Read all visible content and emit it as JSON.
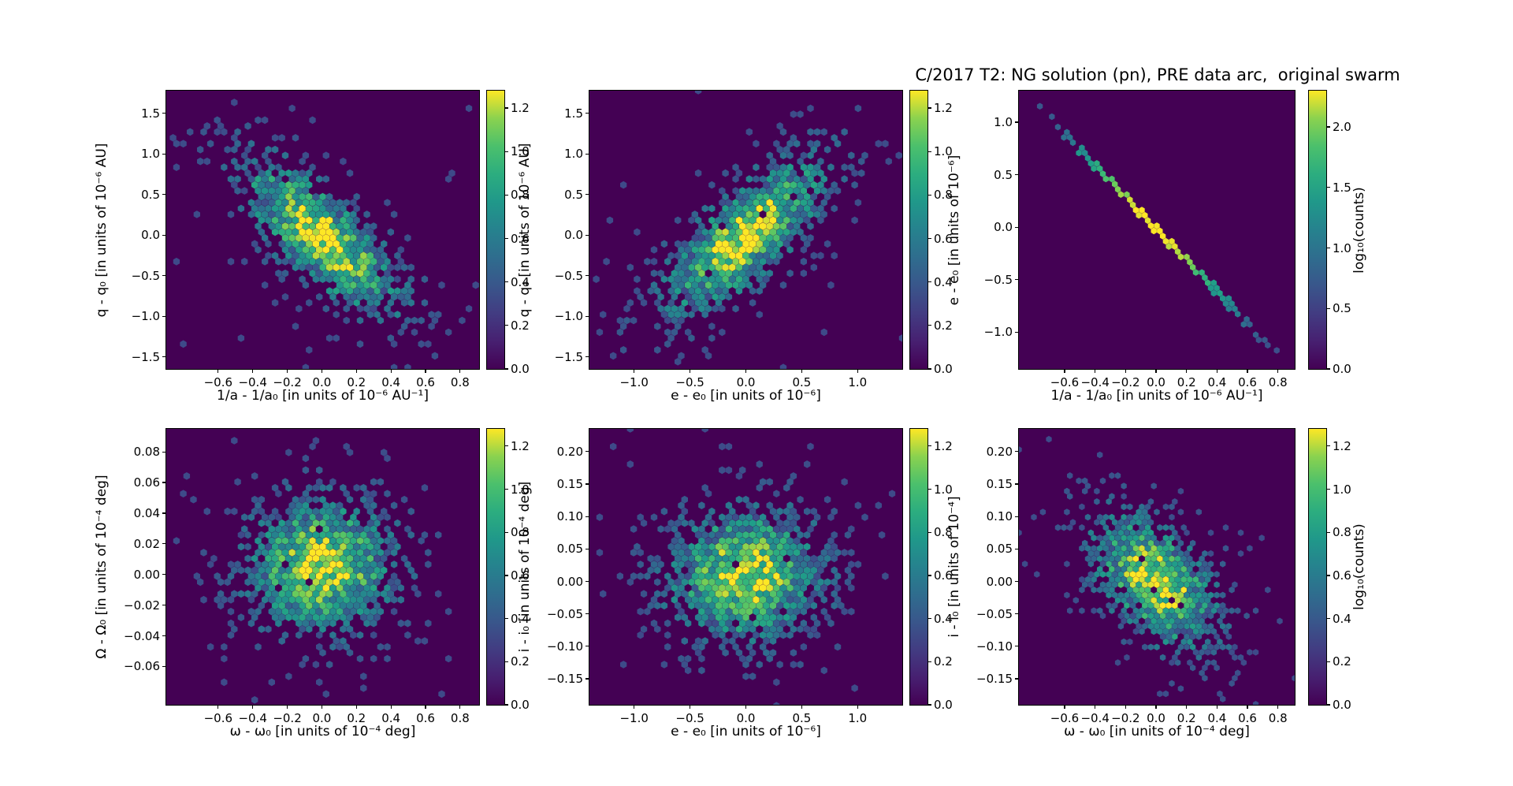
{
  "figure": {
    "title": "C/2017 T2: NG solution (pn), PRE data arc,  original swarm",
    "background": "#ffffff",
    "colormap": "viridis",
    "plot_background": "#440154"
  },
  "chart_data": [
    {
      "type": "hexbin",
      "position": "top-left",
      "xlabel": "1/a - 1/a₀ [in units of 10⁻⁶ AU⁻¹]",
      "ylabel": "q - q₀ [in units of 10⁻⁶ AU]",
      "xlim": [
        -0.9,
        0.91
      ],
      "ylim": [
        -1.65,
        1.78
      ],
      "xticks": [
        "−0.6",
        "−0.4",
        "−0.2",
        "0.0",
        "0.2",
        "0.4",
        "0.6",
        "0.8"
      ],
      "yticks": [
        "1.5",
        "1.0",
        "0.5",
        "0.0",
        "−0.5",
        "−1.0",
        "−1.5"
      ],
      "grid": false,
      "distribution": {
        "kind": "gaussian-blob",
        "center": [
          0.0,
          -0.03
        ],
        "sigma": [
          0.3,
          0.62
        ],
        "rho": -0.75,
        "peak_log10_counts": 1.25
      },
      "colorbar": {
        "vmin": 0.0,
        "vmax": 1.28,
        "ticks": [
          "0.0",
          "0.2",
          "0.4",
          "0.6",
          "0.8",
          "1.0",
          "1.2"
        ],
        "label": ""
      }
    },
    {
      "type": "hexbin",
      "position": "top-middle",
      "xlabel": "e - e₀ [in units of 10⁻⁶]",
      "ylabel": "q - q₀ [in units of 10⁻⁶ AU]",
      "xlim": [
        -1.4,
        1.4
      ],
      "ylim": [
        -1.65,
        1.78
      ],
      "xticks": [
        "−1.0",
        "−0.5",
        "0.0",
        "0.5",
        "1.0"
      ],
      "yticks": [
        "1.5",
        "1.0",
        "0.5",
        "0.0",
        "−0.5",
        "−1.0",
        "−1.5"
      ],
      "grid": false,
      "distribution": {
        "kind": "gaussian-blob",
        "center": [
          0.0,
          0.0
        ],
        "sigma": [
          0.47,
          0.62
        ],
        "rho": 0.75,
        "peak_log10_counts": 1.25
      },
      "colorbar": {
        "vmin": 0.0,
        "vmax": 1.28,
        "ticks": [
          "0.0",
          "0.2",
          "0.4",
          "0.6",
          "0.8",
          "1.0",
          "1.2"
        ],
        "label": ""
      }
    },
    {
      "type": "hexbin",
      "position": "top-right",
      "xlabel": "1/a - 1/a₀ [in units of 10⁻⁶ AU⁻¹]",
      "ylabel": "e - e₀ [in units of 10⁻⁶]",
      "xlim": [
        -0.9,
        0.91
      ],
      "ylim": [
        -1.35,
        1.3
      ],
      "xticks": [
        "−0.6",
        "−0.4",
        "−0.2",
        "0.0",
        "0.2",
        "0.4",
        "0.6",
        "0.8"
      ],
      "yticks": [
        "1.0",
        "0.5",
        "0.0",
        "−0.5",
        "−1.0"
      ],
      "grid": false,
      "distribution": {
        "kind": "degenerate-line",
        "from": [
          -0.85,
          1.27
        ],
        "to": [
          0.79,
          -1.21
        ],
        "peak_log10_counts": 2.3
      },
      "colorbar": {
        "vmin": 0.0,
        "vmax": 2.3,
        "ticks": [
          "0.0",
          "0.5",
          "1.0",
          "1.5",
          "2.0"
        ],
        "label": "log₁₀(counts)"
      }
    },
    {
      "type": "hexbin",
      "position": "bottom-left",
      "xlabel": "ω - ω₀ [in units of 10⁻⁴ deg]",
      "ylabel": "Ω - Ω₀ [in units of 10⁻⁴ deg]",
      "xlim": [
        -0.9,
        0.91
      ],
      "ylim": [
        -0.085,
        0.095
      ],
      "xticks": [
        "−0.6",
        "−0.4",
        "−0.2",
        "0.0",
        "0.2",
        "0.4",
        "0.6",
        "0.8"
      ],
      "yticks": [
        "0.08",
        "0.06",
        "0.04",
        "0.02",
        "0.00",
        "−0.02",
        "−0.04",
        "−0.06"
      ],
      "grid": false,
      "distribution": {
        "kind": "gaussian-blob",
        "center": [
          0.0,
          0.006
        ],
        "sigma": [
          0.28,
          0.028
        ],
        "rho": 0.02,
        "peak_log10_counts": 1.25
      },
      "colorbar": {
        "vmin": 0.0,
        "vmax": 1.28,
        "ticks": [
          "0.0",
          "0.2",
          "0.4",
          "0.6",
          "0.8",
          "1.0",
          "1.2"
        ],
        "label": ""
      }
    },
    {
      "type": "hexbin",
      "position": "bottom-middle",
      "xlabel": "e - e₀ [in units of 10⁻⁶]",
      "ylabel": "i - i₀ [in units of 10⁻⁴ deg]",
      "xlim": [
        -1.4,
        1.4
      ],
      "ylim": [
        -0.19,
        0.235
      ],
      "xticks": [
        "−1.0",
        "−0.5",
        "0.0",
        "0.5",
        "1.0"
      ],
      "yticks": [
        "0.20",
        "0.15",
        "0.10",
        "0.05",
        "0.00",
        "−0.05",
        "−0.10",
        "−0.15"
      ],
      "grid": false,
      "distribution": {
        "kind": "gaussian-blob",
        "center": [
          0.0,
          0.01
        ],
        "sigma": [
          0.45,
          0.067
        ],
        "rho": 0.05,
        "peak_log10_counts": 1.2
      },
      "colorbar": {
        "vmin": 0.0,
        "vmax": 1.28,
        "ticks": [
          "0.0",
          "0.2",
          "0.4",
          "0.6",
          "0.8",
          "1.0",
          "1.2"
        ],
        "label": ""
      }
    },
    {
      "type": "hexbin",
      "position": "bottom-right",
      "xlabel": "ω - ω₀ [in units of 10⁻⁴ deg]",
      "ylabel": "i - i₀ [in units of 10⁻⁴]",
      "xlim": [
        -0.9,
        0.91
      ],
      "ylim": [
        -0.19,
        0.235
      ],
      "xticks": [
        "−0.6",
        "−0.4",
        "−0.2",
        "0.0",
        "0.2",
        "0.4",
        "0.6",
        "0.8"
      ],
      "yticks": [
        "0.20",
        "0.15",
        "0.10",
        "0.05",
        "0.00",
        "−0.05",
        "−0.10",
        "−0.15"
      ],
      "grid": false,
      "distribution": {
        "kind": "gaussian-blob",
        "center": [
          0.0,
          0.0
        ],
        "sigma": [
          0.27,
          0.067
        ],
        "rho": -0.5,
        "peak_log10_counts": 1.25
      },
      "colorbar": {
        "vmin": 0.0,
        "vmax": 1.28,
        "ticks": [
          "0.0",
          "0.2",
          "0.4",
          "0.6",
          "0.8",
          "1.0",
          "1.2"
        ],
        "label": "log₁₀(counts)"
      }
    }
  ]
}
